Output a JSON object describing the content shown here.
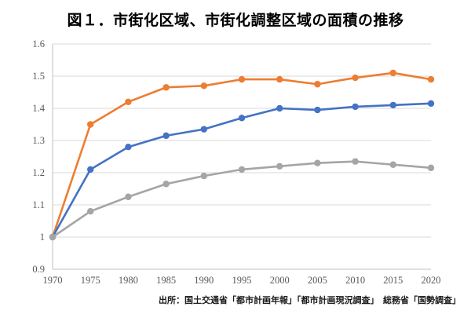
{
  "page": {
    "title": "図１．市街化区域、市街化調整区域の面積の推移",
    "source": "出所：国土交通省「都市計画年報」「都市計画現況調査」　総務省「国勢調査」"
  },
  "chart_data": {
    "type": "line",
    "title": "図１．市街化区域、市街化調整区域の面積の推移",
    "categories": [
      "1970",
      "1975",
      "1980",
      "1985",
      "1990",
      "1995",
      "2000",
      "2005",
      "2010",
      "2015",
      "2020"
    ],
    "series": [
      {
        "name": "orange-series",
        "color": "#ED7D31",
        "values": [
          1.0,
          1.35,
          1.42,
          1.465,
          1.47,
          1.49,
          1.49,
          1.475,
          1.495,
          1.51,
          1.49
        ]
      },
      {
        "name": "blue-series",
        "color": "#4472C4",
        "values": [
          1.0,
          1.21,
          1.28,
          1.315,
          1.335,
          1.37,
          1.4,
          1.395,
          1.405,
          1.41,
          1.415
        ]
      },
      {
        "name": "gray-series",
        "color": "#A5A5A5",
        "values": [
          1.0,
          1.08,
          1.125,
          1.165,
          1.19,
          1.21,
          1.22,
          1.23,
          1.235,
          1.225,
          1.215
        ]
      }
    ],
    "xlabel": "",
    "ylabel": "",
    "ylim": [
      0.9,
      1.6
    ],
    "ytick_interval": 0.1,
    "ytick_labels": [
      "0.9",
      "1",
      "1.1",
      "1.2",
      "1.3",
      "1.4",
      "1.5",
      "1.6"
    ],
    "legend": "none",
    "grid": "horizontal",
    "gridline_color": "#D9D9D9",
    "axis_line_color": "#BFBFBF",
    "tick_label_color": "#595959"
  }
}
